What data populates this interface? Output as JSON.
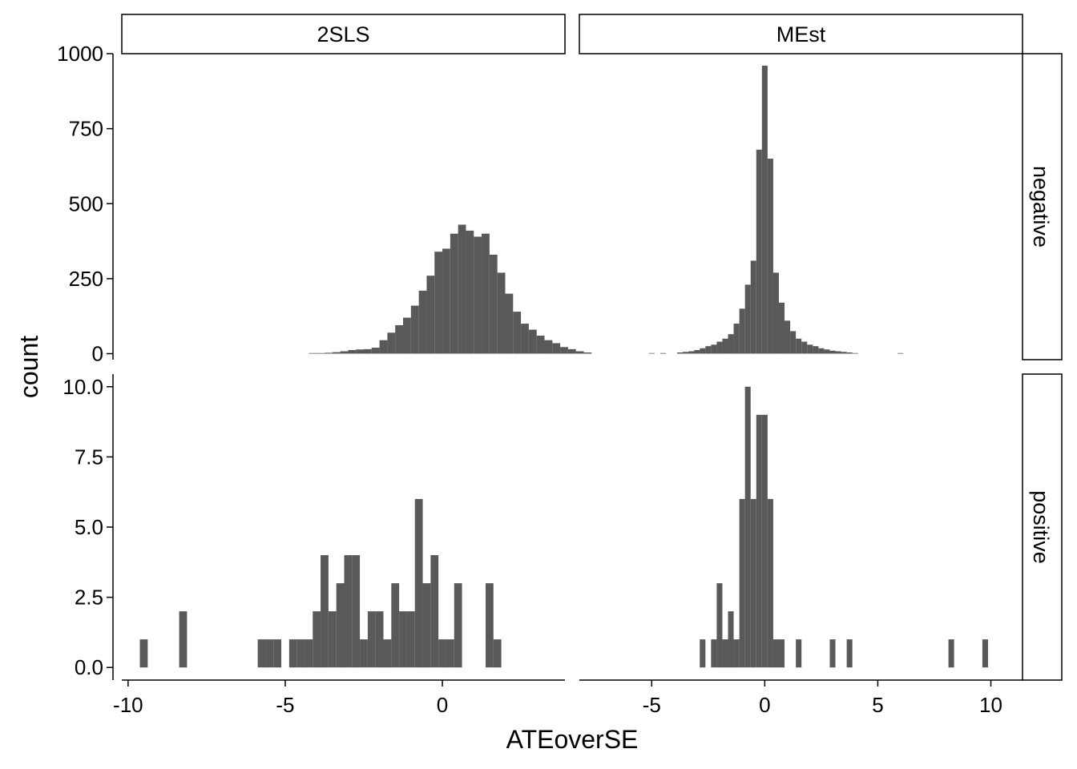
{
  "chart_data": {
    "type": "bar",
    "subtype": "faceted histogram",
    "xlabel": "ATEoverSE",
    "ylabel": "count",
    "columns": [
      "2SLS",
      "MEst"
    ],
    "rows": [
      "negative",
      "positive"
    ],
    "x_ticks": {
      "2SLS": [
        "-10",
        "-5",
        "0"
      ],
      "MEst": [
        "-5",
        "0",
        "5",
        "10"
      ]
    },
    "y_ticks": {
      "negative": [
        "0",
        "250",
        "500",
        "750",
        "1000"
      ],
      "positive": [
        "0.0",
        "2.5",
        "5.0",
        "7.5",
        "10.0"
      ]
    },
    "xlim": {
      "2SLS": [
        -10.2,
        3.9
      ],
      "MEst": [
        -8.2,
        11.4
      ]
    },
    "ylim": {
      "negative": [
        -20,
        1000
      ],
      "positive": [
        -0.45,
        10.45
      ]
    },
    "binwidth": 0.25,
    "bar_color": "#595959",
    "grid": false,
    "panels": [
      {
        "column": "2SLS",
        "row": "negative",
        "bins_start": -4.125,
        "counts": [
          2,
          2,
          3,
          5,
          8,
          12,
          14,
          15,
          20,
          45,
          70,
          95,
          120,
          160,
          210,
          260,
          340,
          350,
          400,
          430,
          410,
          390,
          400,
          330,
          270,
          200,
          140,
          100,
          80,
          60,
          45,
          35,
          22,
          15,
          8,
          4
        ]
      },
      {
        "column": "MEst",
        "row": "negative",
        "bins": [
          {
            "x": -5.0,
            "count": 2
          },
          {
            "x": -4.5,
            "count": 2
          },
          {
            "x": -3.75,
            "count": 4
          },
          {
            "x": -3.5,
            "count": 6
          },
          {
            "x": -3.25,
            "count": 8
          },
          {
            "x": -3.0,
            "count": 12
          },
          {
            "x": -2.75,
            "count": 18
          },
          {
            "x": -2.5,
            "count": 25
          },
          {
            "x": -2.25,
            "count": 30
          },
          {
            "x": -2.0,
            "count": 40
          },
          {
            "x": -1.75,
            "count": 50
          },
          {
            "x": -1.5,
            "count": 65
          },
          {
            "x": -1.25,
            "count": 100
          },
          {
            "x": -1.0,
            "count": 150
          },
          {
            "x": -0.75,
            "count": 230
          },
          {
            "x": -0.5,
            "count": 310
          },
          {
            "x": -0.25,
            "count": 680
          },
          {
            "x": 0.0,
            "count": 960
          },
          {
            "x": 0.25,
            "count": 650
          },
          {
            "x": 0.5,
            "count": 270
          },
          {
            "x": 0.75,
            "count": 170
          },
          {
            "x": 1.0,
            "count": 110
          },
          {
            "x": 1.25,
            "count": 75
          },
          {
            "x": 1.5,
            "count": 50
          },
          {
            "x": 1.75,
            "count": 40
          },
          {
            "x": 2.0,
            "count": 30
          },
          {
            "x": 2.25,
            "count": 25
          },
          {
            "x": 2.5,
            "count": 18
          },
          {
            "x": 2.75,
            "count": 14
          },
          {
            "x": 3.0,
            "count": 10
          },
          {
            "x": 3.25,
            "count": 8
          },
          {
            "x": 3.5,
            "count": 6
          },
          {
            "x": 3.75,
            "count": 4
          },
          {
            "x": 4.0,
            "count": 2
          },
          {
            "x": 6.0,
            "count": 2
          }
        ]
      },
      {
        "column": "2SLS",
        "row": "positive",
        "bins": [
          {
            "x": -9.5,
            "count": 1
          },
          {
            "x": -8.25,
            "count": 2
          },
          {
            "x": -5.75,
            "count": 1
          },
          {
            "x": -5.5,
            "count": 1
          },
          {
            "x": -5.25,
            "count": 1
          },
          {
            "x": -4.75,
            "count": 1
          },
          {
            "x": -4.5,
            "count": 1
          },
          {
            "x": -4.25,
            "count": 1
          },
          {
            "x": -4.0,
            "count": 2
          },
          {
            "x": -3.75,
            "count": 4
          },
          {
            "x": -3.5,
            "count": 2
          },
          {
            "x": -3.25,
            "count": 3
          },
          {
            "x": -3.0,
            "count": 4
          },
          {
            "x": -2.75,
            "count": 4
          },
          {
            "x": -2.5,
            "count": 1
          },
          {
            "x": -2.25,
            "count": 2
          },
          {
            "x": -2.0,
            "count": 2
          },
          {
            "x": -1.75,
            "count": 1
          },
          {
            "x": -1.5,
            "count": 3
          },
          {
            "x": -1.25,
            "count": 2
          },
          {
            "x": -1.0,
            "count": 2
          },
          {
            "x": -0.75,
            "count": 6
          },
          {
            "x": -0.5,
            "count": 3
          },
          {
            "x": -0.25,
            "count": 4
          },
          {
            "x": 0.0,
            "count": 1
          },
          {
            "x": 0.25,
            "count": 1
          },
          {
            "x": 0.5,
            "count": 3
          },
          {
            "x": 1.5,
            "count": 3
          },
          {
            "x": 1.75,
            "count": 1
          }
        ]
      },
      {
        "column": "MEst",
        "row": "positive",
        "bins": [
          {
            "x": -2.75,
            "count": 1
          },
          {
            "x": -2.25,
            "count": 1
          },
          {
            "x": -2.0,
            "count": 3
          },
          {
            "x": -1.75,
            "count": 1
          },
          {
            "x": -1.5,
            "count": 2
          },
          {
            "x": -1.25,
            "count": 1
          },
          {
            "x": -1.0,
            "count": 6
          },
          {
            "x": -0.75,
            "count": 10
          },
          {
            "x": -0.5,
            "count": 6
          },
          {
            "x": -0.25,
            "count": 9
          },
          {
            "x": 0.0,
            "count": 9
          },
          {
            "x": 0.25,
            "count": 6
          },
          {
            "x": 0.5,
            "count": 1
          },
          {
            "x": 0.75,
            "count": 1
          },
          {
            "x": 1.5,
            "count": 1
          },
          {
            "x": 3.0,
            "count": 1
          },
          {
            "x": 3.75,
            "count": 1
          },
          {
            "x": 8.25,
            "count": 1
          },
          {
            "x": 9.75,
            "count": 1
          }
        ]
      }
    ]
  }
}
